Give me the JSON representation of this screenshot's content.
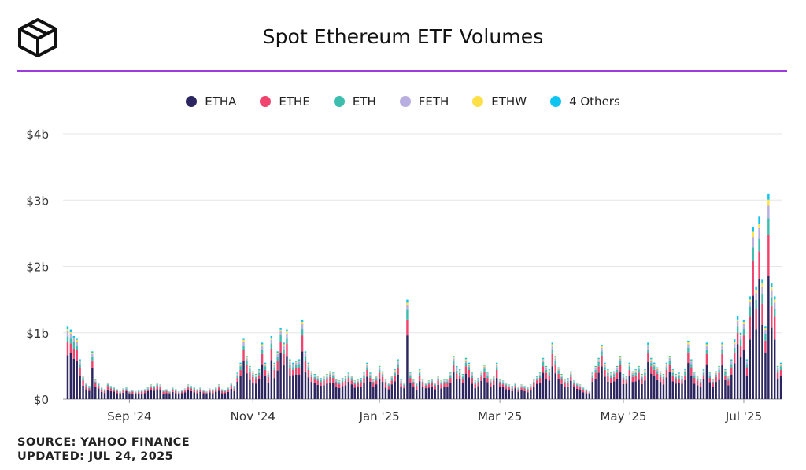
{
  "header": {
    "title": "Spot Ethereum ETF Volumes"
  },
  "logo": {
    "icon": "cube-logo-icon"
  },
  "footer": {
    "source": "SOURCE: YAHOO FINANCE",
    "updated": "UPDATED: JUL 24, 2025"
  },
  "colors": {
    "ETHA": "#2b2560",
    "ETHE": "#f0436e",
    "ETH": "#3dbdad",
    "FETH": "#b9aee0",
    "ETHW": "#fde047",
    "4 Others": "#0cc4ef",
    "accent": "#9b3be0"
  },
  "chart_data": {
    "type": "bar",
    "stacked": true,
    "legend_position": "top-center",
    "grid": true,
    "ylim": [
      0,
      4
    ],
    "y_ticks": [
      {
        "value": 0,
        "label": "$0"
      },
      {
        "value": 1,
        "label": "$1b"
      },
      {
        "value": 2,
        "label": "$2b"
      },
      {
        "value": 3,
        "label": "$3b"
      },
      {
        "value": 4,
        "label": "$4b"
      }
    ],
    "x_ticks": [
      "Sep '24",
      "Nov '24",
      "Jan '25",
      "Mar '25",
      "May '25",
      "Jul '25"
    ],
    "x_tick_positions": [
      20,
      60,
      101,
      140,
      180,
      219
    ],
    "series_names": [
      "ETHA",
      "ETHE",
      "ETH",
      "FETH",
      "ETHW",
      "4 Others"
    ],
    "totals": [
      1.1,
      1.05,
      0.95,
      0.92,
      0.6,
      0.35,
      0.25,
      0.2,
      0.72,
      0.3,
      0.25,
      0.18,
      0.15,
      0.25,
      0.2,
      0.18,
      0.15,
      0.12,
      0.16,
      0.18,
      0.12,
      0.14,
      0.12,
      0.13,
      0.14,
      0.15,
      0.18,
      0.22,
      0.2,
      0.25,
      0.22,
      0.14,
      0.15,
      0.12,
      0.18,
      0.15,
      0.12,
      0.14,
      0.16,
      0.22,
      0.2,
      0.18,
      0.15,
      0.18,
      0.14,
      0.12,
      0.16,
      0.15,
      0.18,
      0.22,
      0.15,
      0.14,
      0.18,
      0.25,
      0.2,
      0.4,
      0.55,
      0.92,
      0.65,
      0.5,
      0.42,
      0.38,
      0.45,
      0.85,
      0.55,
      0.42,
      0.95,
      0.55,
      0.72,
      1.08,
      0.85,
      1.05,
      0.6,
      0.55,
      0.58,
      0.6,
      1.2,
      0.72,
      0.55,
      0.42,
      0.38,
      0.35,
      0.32,
      0.35,
      0.38,
      0.42,
      0.4,
      0.3,
      0.28,
      0.32,
      0.35,
      0.4,
      0.35,
      0.28,
      0.3,
      0.32,
      0.4,
      0.55,
      0.4,
      0.3,
      0.35,
      0.5,
      0.42,
      0.3,
      0.25,
      0.35,
      0.45,
      0.6,
      0.3,
      0.25,
      1.5,
      0.4,
      0.3,
      0.25,
      0.45,
      0.3,
      0.25,
      0.28,
      0.3,
      0.25,
      0.35,
      0.28,
      0.3,
      0.3,
      0.4,
      0.65,
      0.5,
      0.45,
      0.38,
      0.62,
      0.55,
      0.4,
      0.28,
      0.32,
      0.42,
      0.52,
      0.4,
      0.3,
      0.35,
      0.55,
      0.3,
      0.28,
      0.25,
      0.22,
      0.2,
      0.25,
      0.18,
      0.22,
      0.2,
      0.18,
      0.22,
      0.3,
      0.35,
      0.4,
      0.62,
      0.5,
      0.45,
      0.85,
      0.65,
      0.48,
      0.38,
      0.3,
      0.32,
      0.42,
      0.28,
      0.25,
      0.22,
      0.18,
      0.15,
      0.12,
      0.4,
      0.5,
      0.62,
      0.82,
      0.55,
      0.45,
      0.4,
      0.42,
      0.5,
      0.65,
      0.38,
      0.35,
      0.55,
      0.42,
      0.45,
      0.5,
      0.38,
      0.45,
      0.85,
      0.62,
      0.55,
      0.48,
      0.42,
      0.38,
      0.55,
      0.65,
      0.45,
      0.38,
      0.4,
      0.35,
      0.45,
      0.88,
      0.6,
      0.4,
      0.35,
      0.3,
      0.45,
      0.85,
      0.4,
      0.3,
      0.42,
      0.5,
      0.85,
      0.45,
      0.35,
      0.6,
      0.9,
      1.25,
      1.0,
      1.2,
      0.6,
      1.55,
      2.6,
      1.7,
      2.75,
      1.8,
      1.1,
      3.1,
      1.75,
      1.55,
      0.5,
      0.55
    ],
    "series_shares": {
      "ETHA": [
        0.6,
        0.66,
        0.64,
        0.62,
        0.6,
        0.58,
        0.6,
        0.62,
        0.66,
        0.62,
        0.64,
        0.6,
        0.62,
        0.58,
        0.6,
        0.64,
        0.6,
        0.62
      ],
      "ETHE": [
        0.18,
        0.14,
        0.16,
        0.18,
        0.2,
        0.22,
        0.2,
        0.18,
        0.15,
        0.18,
        0.16,
        0.2,
        0.18,
        0.22,
        0.2,
        0.16,
        0.2,
        0.18
      ],
      "ETH": [
        0.08,
        0.08,
        0.1,
        0.08,
        0.08,
        0.1,
        0.08,
        0.08,
        0.07,
        0.08,
        0.1,
        0.08,
        0.08,
        0.08,
        0.08,
        0.1,
        0.08,
        0.08
      ],
      "FETH": [
        0.07,
        0.06,
        0.05,
        0.06,
        0.06,
        0.05,
        0.06,
        0.06,
        0.06,
        0.06,
        0.05,
        0.06,
        0.06,
        0.06,
        0.06,
        0.05,
        0.06,
        0.06
      ],
      "ETHW": [
        0.03,
        0.02,
        0.02,
        0.03,
        0.03,
        0.02,
        0.03,
        0.03,
        0.02,
        0.03,
        0.02,
        0.03,
        0.03,
        0.03,
        0.03,
        0.02,
        0.03,
        0.03
      ],
      "4 Others": [
        0.04,
        0.04,
        0.03,
        0.03,
        0.03,
        0.03,
        0.03,
        0.03,
        0.04,
        0.03,
        0.03,
        0.03,
        0.03,
        0.03,
        0.03,
        0.03,
        0.03,
        0.03
      ]
    }
  }
}
